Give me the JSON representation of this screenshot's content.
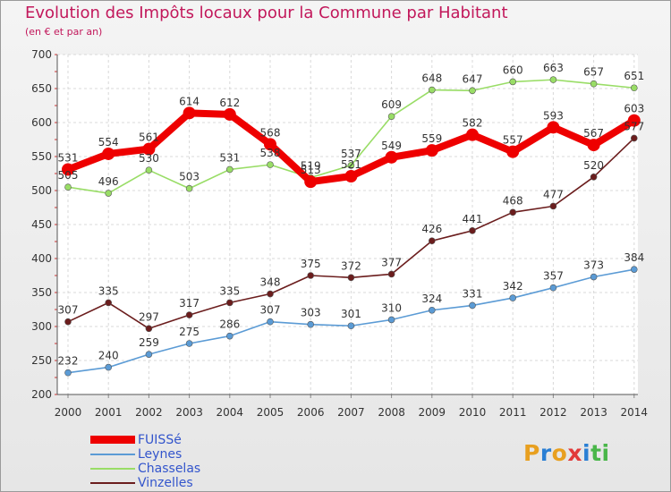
{
  "title": "Evolution des Impôts locaux pour la Commune par Habitant",
  "subtitle": "(en € et par an)",
  "logo": {
    "text": "Proxiti",
    "letters": [
      {
        "ch": "P",
        "color": "#e8a020"
      },
      {
        "ch": "r",
        "color": "#2a7fd4"
      },
      {
        "ch": "o",
        "color": "#e8a020"
      },
      {
        "ch": "x",
        "color": "#e23a3a"
      },
      {
        "ch": "i",
        "color": "#2a7fd4"
      },
      {
        "ch": "t",
        "color": "#49b649"
      },
      {
        "ch": "i",
        "color": "#49b649"
      }
    ]
  },
  "chart_data": {
    "type": "line",
    "title": "Evolution des Impôts locaux pour la Commune par Habitant",
    "subtitle": "(en € et par an)",
    "x": [
      "2000",
      "2001",
      "2002",
      "2003",
      "2004",
      "2005",
      "2006",
      "2007",
      "2008",
      "2009",
      "2010",
      "2011",
      "2012",
      "2013",
      "2014"
    ],
    "ylim": [
      200,
      700
    ],
    "yticks": [
      200,
      250,
      300,
      350,
      400,
      450,
      500,
      550,
      600,
      650,
      700
    ],
    "grid": true,
    "legend_position": "bottom-left",
    "series": [
      {
        "name": "FUISSé",
        "color": "#ee0000",
        "emphasis": true,
        "values": [
          531,
          554,
          561,
          614,
          612,
          568,
          513,
          521,
          549,
          559,
          582,
          557,
          593,
          567,
          603
        ],
        "labels": [
          "531",
          "554",
          "561",
          "614",
          "612",
          "568",
          "513",
          "521",
          "549",
          "559",
          "582",
          "557",
          "593",
          "567",
          "603"
        ]
      },
      {
        "name": "Leynes",
        "color": "#5b9bd5",
        "emphasis": false,
        "values": [
          232,
          240,
          259,
          275,
          286,
          307,
          303,
          301,
          310,
          324,
          331,
          342,
          357,
          373,
          384
        ],
        "labels": [
          "232",
          "240",
          "259",
          "275",
          "286",
          "307",
          "303",
          "301",
          "310",
          "324",
          "331",
          "342",
          "357",
          "373",
          "384"
        ]
      },
      {
        "name": "Chasselas",
        "color": "#99dd66",
        "emphasis": false,
        "values": [
          505,
          496,
          530,
          503,
          531,
          538,
          519,
          537,
          609,
          648,
          647,
          660,
          663,
          657,
          651
        ],
        "labels": [
          "505",
          "496",
          "530",
          "503",
          "531",
          "538",
          "519",
          "537",
          "609",
          "648",
          "647",
          "660",
          "663",
          "657",
          "651"
        ]
      },
      {
        "name": "Vinzelles",
        "color": "#6b1d1d",
        "emphasis": false,
        "values": [
          307,
          335,
          297,
          317,
          335,
          348,
          375,
          372,
          377,
          426,
          441,
          468,
          477,
          520,
          577
        ],
        "labels": [
          "307",
          "335",
          "297",
          "317",
          "335",
          "348",
          "375",
          "372",
          "377",
          "426",
          "441",
          "468",
          "477",
          "520",
          "577"
        ]
      }
    ]
  }
}
